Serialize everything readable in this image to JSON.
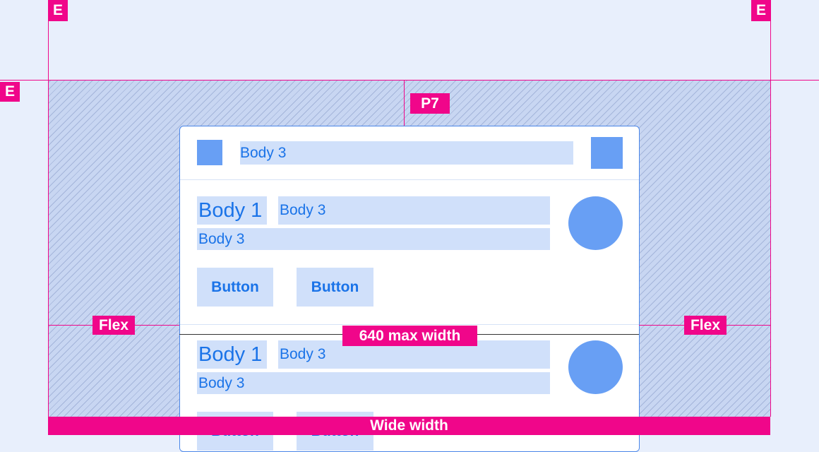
{
  "labels": {
    "edge": "E",
    "padding": "P7",
    "flex": "Flex",
    "max_width": "640 max width",
    "wide_width": "Wide width"
  },
  "card": {
    "header": {
      "title": "Body 3"
    },
    "rows": [
      {
        "title": "Body 1",
        "subtitle": "Body 3",
        "body": "Body 3",
        "buttons": [
          "Button",
          "Button"
        ]
      },
      {
        "title": "Body 1",
        "subtitle": "Body 3",
        "body": "Body 3",
        "buttons": [
          "Button",
          "Button"
        ]
      }
    ]
  },
  "colors": {
    "annotation": "#f0068a",
    "accent": "#1a73e8",
    "fill": "#689ff4",
    "background": "#e8effc"
  }
}
